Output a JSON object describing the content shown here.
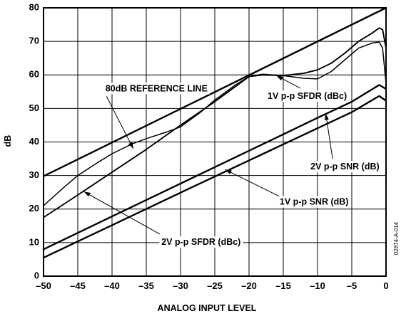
{
  "chart_data": {
    "type": "line",
    "xlabel": "ANALOG INPUT LEVEL",
    "ylabel": "dB",
    "xlim": [
      -50,
      0
    ],
    "ylim": [
      0,
      80
    ],
    "xticks": [
      -50,
      -45,
      -40,
      -35,
      -30,
      -25,
      -20,
      -15,
      -10,
      -5,
      0
    ],
    "yticks": [
      0,
      10,
      20,
      30,
      40,
      50,
      60,
      70,
      80
    ],
    "xtick_labels": [
      "–50",
      "–45",
      "–40",
      "–35",
      "–30",
      "–25",
      "–20",
      "–15",
      "–10",
      "–5",
      "0"
    ],
    "ytick_labels": [
      "0",
      "10",
      "20",
      "30",
      "40",
      "50",
      "60",
      "70",
      "80"
    ],
    "grid": true,
    "figure_id": "02874-A-014",
    "series": [
      {
        "name": "80dB REFERENCE LINE",
        "stroke_width": 2.4,
        "x": [
          -50,
          0
        ],
        "y": [
          29.8,
          80
        ]
      },
      {
        "name": "1V p-p SFDR (dBc)",
        "stroke_width": 1.5,
        "x": [
          -50,
          -47,
          -45,
          -42,
          -40,
          -37,
          -35,
          -32,
          -30,
          -27,
          -25,
          -22,
          -20,
          -18,
          -15,
          -12,
          -10,
          -8,
          -6,
          -4,
          -2,
          -1,
          -0.5,
          0
        ],
        "y": [
          21,
          26.5,
          30,
          34,
          36.5,
          39.5,
          41,
          43,
          44.5,
          49,
          52.5,
          57,
          59.5,
          60.2,
          59.8,
          59,
          58.8,
          61,
          64.5,
          68,
          69.5,
          69.8,
          68,
          57.5
        ]
      },
      {
        "name": "2V p-p SFDR (dBc)",
        "stroke_width": 1.9,
        "x": [
          -50,
          -45,
          -40,
          -35,
          -30,
          -25,
          -20,
          -18,
          -15,
          -12,
          -10,
          -8,
          -6,
          -4,
          -2,
          -1,
          -0.5,
          0
        ],
        "y": [
          17.5,
          24.2,
          31,
          37.8,
          45,
          52,
          59.5,
          60,
          59.8,
          60.5,
          61.5,
          63.5,
          66.5,
          70,
          72.5,
          74,
          73.5,
          68
        ]
      },
      {
        "name": "2V p-p SNR (dB)",
        "stroke_width": 2.4,
        "x": [
          -50,
          -40,
          -30,
          -20,
          -10,
          -5,
          -1,
          0
        ],
        "y": [
          8,
          17.8,
          27.6,
          37.4,
          47.2,
          52,
          57,
          55.8
        ]
      },
      {
        "name": "1V p-p SNR (dB)",
        "stroke_width": 2.4,
        "x": [
          -50,
          -40,
          -30,
          -20,
          -10,
          -5,
          -1,
          0
        ],
        "y": [
          5.5,
          15.2,
          24.9,
          34.5,
          44.1,
          48.9,
          53.7,
          52.3
        ]
      }
    ],
    "annotations": [
      {
        "text": "80dB REFERENCE LINE",
        "series": "80dB REFERENCE LINE",
        "label_anchor": [
          -33.5,
          55.8
        ],
        "pointer_from": [
          -40.8,
          53.6
        ],
        "pointer_to": [
          -36.9,
          38
        ]
      },
      {
        "text": "1V p-p SFDR (dBc)",
        "series": "1V p-p SFDR (dBc)",
        "label_anchor": [
          -11.5,
          53.5
        ],
        "pointer_from": [
          -12.5,
          56
        ],
        "pointer_to": [
          -16,
          59.8
        ]
      },
      {
        "text": "2V p-p SNR (dB)",
        "series": "2V p-p SNR (dB)",
        "label_anchor": [
          -6,
          32.5
        ],
        "pointer_from": [
          -7.8,
          35
        ],
        "pointer_to": [
          -8.8,
          48.5
        ]
      },
      {
        "text": "1V p-p SNR (dB)",
        "series": "1V p-p SNR (dB)",
        "label_anchor": [
          -10.5,
          22
        ],
        "pointer_from": [
          -15,
          23.2
        ],
        "pointer_to": [
          -23.5,
          31.8
        ]
      },
      {
        "text": "2V p-p SFDR (dBc)",
        "series": "2V p-p SFDR (dBc)",
        "label_anchor": [
          -27,
          10
        ],
        "pointer_from": [
          -33,
          12.5
        ],
        "pointer_to": [
          -44.1,
          25.2
        ]
      }
    ]
  }
}
